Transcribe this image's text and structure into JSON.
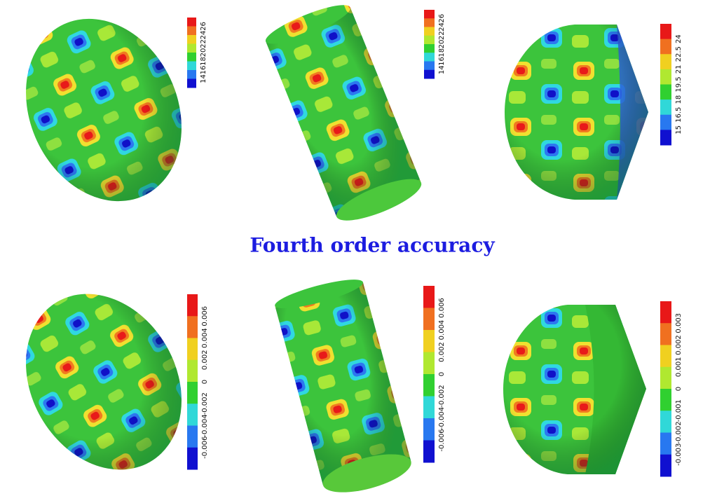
{
  "title": "Fourth order accuracy",
  "panels": [
    {
      "colorbar": {
        "labels": [
          "14",
          "16",
          "18",
          "20",
          "22",
          "24",
          "26"
        ]
      }
    },
    {
      "colorbar": {
        "labels": [
          "14",
          "16",
          "18",
          "20",
          "22",
          "24",
          "26"
        ]
      }
    },
    {
      "colorbar": {
        "labels": [
          "15",
          "16.5",
          "18",
          "19.5",
          "21",
          "22.5",
          "24"
        ]
      }
    },
    {
      "colorbar": {
        "labels": [
          "-0.006",
          "-0.004",
          "-0.002",
          "0",
          "0.002",
          "0.004",
          "0.006"
        ]
      }
    },
    {
      "colorbar": {
        "labels": [
          "-0.006",
          "-0.004",
          "-0.002",
          "0",
          "0.002",
          "0.004",
          "0.006"
        ]
      }
    },
    {
      "colorbar": {
        "labels": [
          "-0.003",
          "-0.002",
          "-0.001",
          "0",
          "0.001",
          "0.002",
          "0.003"
        ]
      }
    }
  ]
}
